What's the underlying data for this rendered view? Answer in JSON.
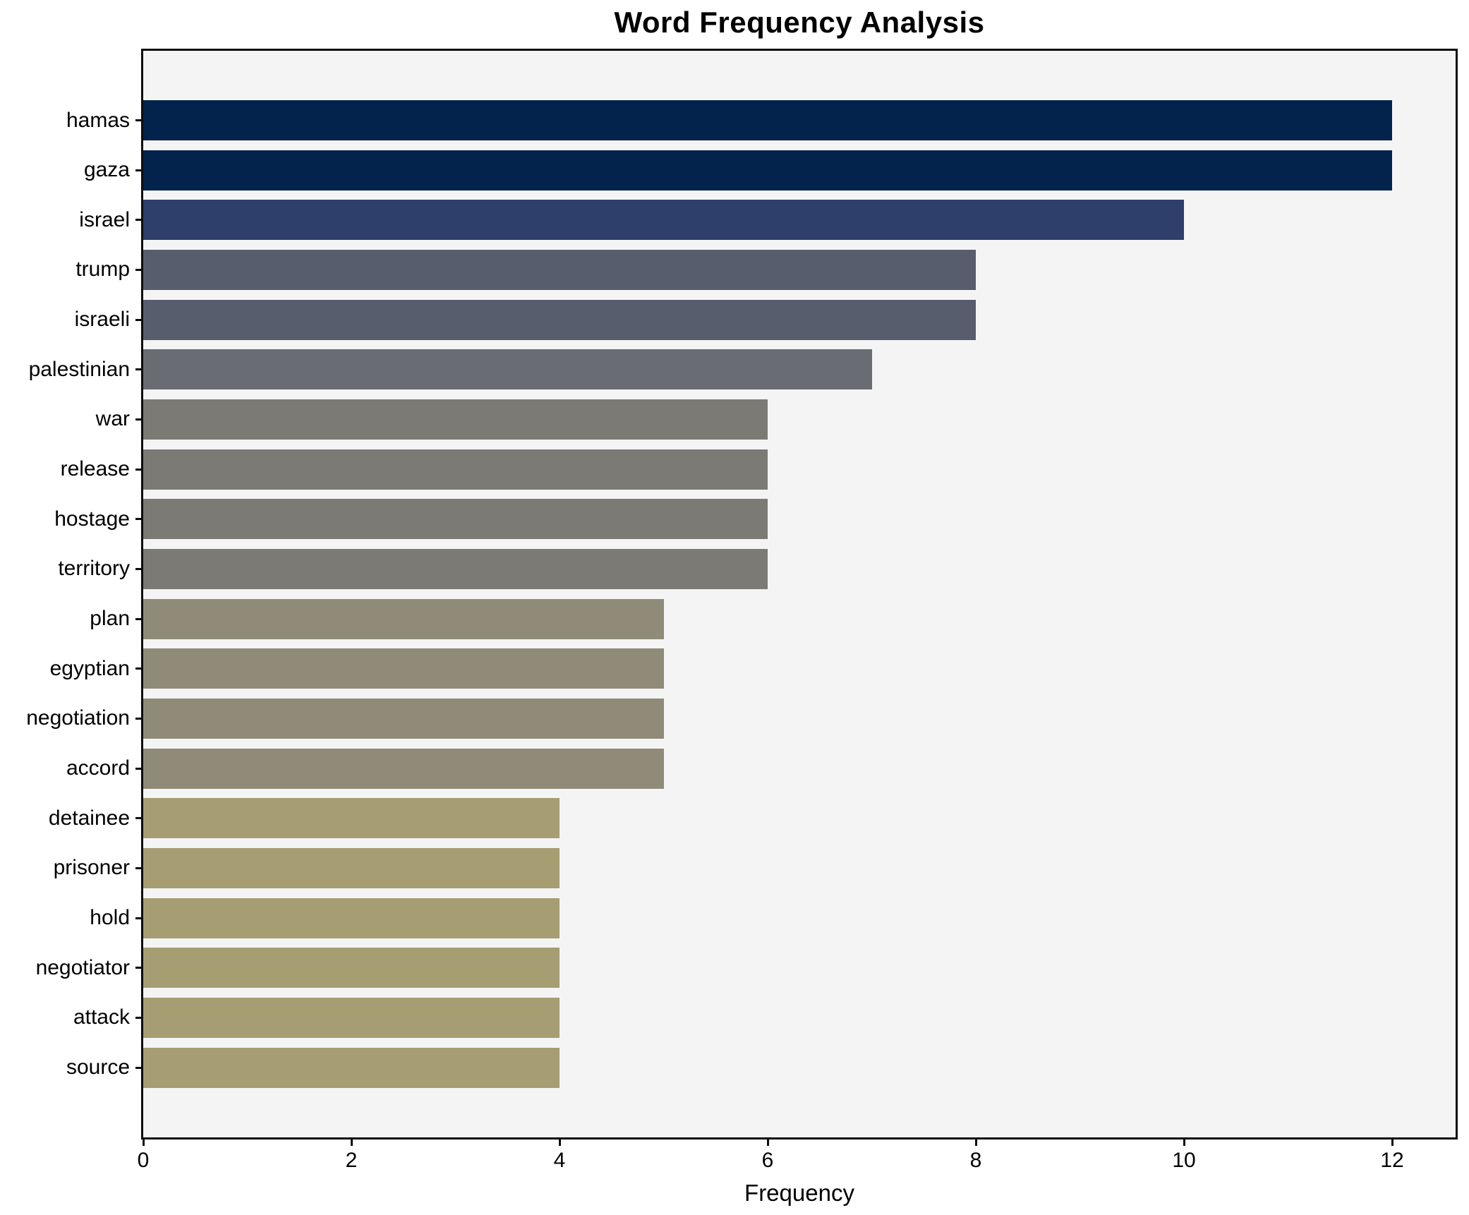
{
  "chart_data": {
    "type": "bar",
    "orientation": "horizontal",
    "title": "Word Frequency Analysis",
    "xlabel": "Frequency",
    "ylabel": "",
    "categories": [
      "hamas",
      "gaza",
      "israel",
      "trump",
      "israeli",
      "palestinian",
      "war",
      "release",
      "hostage",
      "territory",
      "plan",
      "egyptian",
      "negotiation",
      "accord",
      "detainee",
      "prisoner",
      "hold",
      "negotiator",
      "attack",
      "source"
    ],
    "values": [
      12,
      12,
      10,
      8,
      8,
      7,
      6,
      6,
      6,
      6,
      5,
      5,
      5,
      5,
      4,
      4,
      4,
      4,
      4,
      4
    ],
    "bar_colors": [
      "#03234d",
      "#03234d",
      "#2d3f6a",
      "#575d6d",
      "#575d6d",
      "#696c72",
      "#7b7a75",
      "#7b7a75",
      "#7b7a75",
      "#7b7a75",
      "#908a79",
      "#908a79",
      "#908a79",
      "#908a79",
      "#a69d72",
      "#a69d72",
      "#a69d72",
      "#a69d72",
      "#a69d72",
      "#a69d72"
    ],
    "xticks": [
      "0",
      "2",
      "4",
      "6",
      "8",
      "10",
      "12"
    ],
    "xtick_values": [
      0,
      2,
      4,
      6,
      8,
      10,
      12
    ],
    "xlim": [
      0,
      12.61
    ],
    "grid": false,
    "legend_position": "none",
    "plot_background": "#f5f4f5",
    "figure_background": "#ffffff",
    "spine_color": "#0d0d0d",
    "text_color": "#000000"
  }
}
